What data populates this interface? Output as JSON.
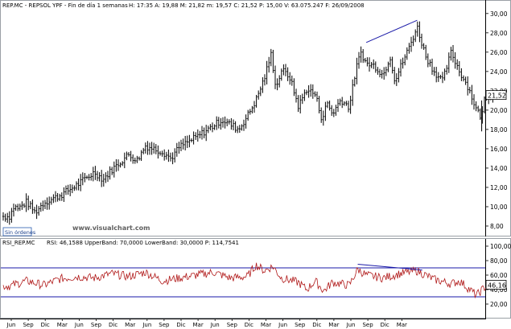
{
  "colors": {
    "price_bars": "#000000",
    "trendline": "#1a1aa8",
    "rsi_line": "#b01818",
    "rsi_band": "#1a1aa8",
    "last_tag_bg": "#ffffff"
  },
  "chart_data": [
    {
      "type": "ohlc",
      "title": "REP.MC - REPSOL YPF - Fin de día 1 semanas",
      "stats": "H: 17:35  A: 19,88  M: 21,82  m: 19,57  C: 21,52  P: 15,00  V: 63.075.247  F: 26/09/2008",
      "watermark": "www.visualchart.com",
      "orders_label": "Sin órdenes",
      "last_value_label": "21,52",
      "last_value": 21.52,
      "ylim": [
        7,
        30.4
      ],
      "y_ticks": [
        8,
        10,
        12,
        14,
        16,
        18,
        20,
        22,
        24,
        26,
        28,
        30
      ],
      "y_tick_labels": [
        "8,00",
        "10,00",
        "12,00",
        "14,00",
        "16,00",
        "18,00",
        "20,00",
        "22,00",
        "24,00",
        "26,00",
        "28,00",
        "30,00"
      ],
      "x_labels": [
        "Jun",
        "Sep",
        "Dic",
        "Mar",
        "Jun",
        "Sep",
        "Dic",
        "Mar",
        "Jun",
        "Sep",
        "Dic",
        "Mar",
        "Jun",
        "Sep",
        "Dic",
        "Mar",
        "Jun",
        "Sep",
        "Dic",
        "Mar",
        "Jun",
        "Sep",
        "Dic",
        "Mar"
      ],
      "grid": false,
      "close_path": [
        {
          "x": 0,
          "close": 9.0
        },
        {
          "x": 0.25,
          "close": 10.0
        },
        {
          "x": 0.5,
          "close": 9.8
        },
        {
          "x": 1,
          "close": 10.5
        },
        {
          "x": 1.5,
          "close": 9.4
        },
        {
          "x": 2,
          "close": 10.4
        },
        {
          "x": 3,
          "close": 11.2
        },
        {
          "x": 4,
          "close": 12.3
        },
        {
          "x": 5,
          "close": 13.6
        },
        {
          "x": 5.5,
          "close": 12.8
        },
        {
          "x": 6,
          "close": 13.8
        },
        {
          "x": 7,
          "close": 15.4
        },
        {
          "x": 7.5,
          "close": 14.8
        },
        {
          "x": 8,
          "close": 16.3
        },
        {
          "x": 9,
          "close": 15.7
        },
        {
          "x": 9.5,
          "close": 15.0
        },
        {
          "x": 10,
          "close": 16.2
        },
        {
          "x": 11,
          "close": 17.2
        },
        {
          "x": 12,
          "close": 18.4
        },
        {
          "x": 12.5,
          "close": 19.0
        },
        {
          "x": 13,
          "close": 18.5
        },
        {
          "x": 13.5,
          "close": 18.0
        },
        {
          "x": 14,
          "close": 19.4
        },
        {
          "x": 14.5,
          "close": 21.0
        },
        {
          "x": 15,
          "close": 23.3
        },
        {
          "x": 15.4,
          "close": 25.8
        },
        {
          "x": 15.7,
          "close": 22.2
        },
        {
          "x": 16,
          "close": 24.2
        },
        {
          "x": 16.5,
          "close": 23.4
        },
        {
          "x": 17,
          "close": 20.4
        },
        {
          "x": 17.5,
          "close": 22.2
        },
        {
          "x": 18,
          "close": 21.6
        },
        {
          "x": 18.4,
          "close": 19.0
        },
        {
          "x": 18.7,
          "close": 20.8
        },
        {
          "x": 19,
          "close": 19.6
        },
        {
          "x": 19.5,
          "close": 21.1
        },
        {
          "x": 20,
          "close": 20.3
        },
        {
          "x": 20.4,
          "close": 24.3
        },
        {
          "x": 20.7,
          "close": 26.0
        },
        {
          "x": 21,
          "close": 24.8
        },
        {
          "x": 21.5,
          "close": 24.6
        },
        {
          "x": 22,
          "close": 23.6
        },
        {
          "x": 22.4,
          "close": 25.6
        },
        {
          "x": 22.7,
          "close": 23.0
        },
        {
          "x": 23,
          "close": 24.4
        },
        {
          "x": 23.5,
          "close": 26.4
        },
        {
          "x": 24,
          "close": 28.6
        },
        {
          "x": 24.5,
          "close": 25.6
        },
        {
          "x": 25,
          "close": 24.0
        },
        {
          "x": 25.5,
          "close": 23.0
        },
        {
          "x": 26,
          "close": 26.0
        },
        {
          "x": 26.5,
          "close": 24.0
        },
        {
          "x": 27,
          "close": 22.4
        },
        {
          "x": 27.5,
          "close": 20.0
        },
        {
          "x": 27.8,
          "close": 19.2
        },
        {
          "x": 28,
          "close": 21.6
        },
        {
          "x": 28.5,
          "close": 21.52
        }
      ],
      "trendline": {
        "points": [
          {
            "x": 21.0,
            "y": 27.0
          },
          {
            "x": 24.0,
            "y": 29.3
          }
        ]
      }
    },
    {
      "type": "line",
      "title": "RSI_REP.MC",
      "legend": "RSI: 46,1588  UpperBand: 70,0000  LowerBand: 30,0000  P: 114,7541",
      "series_name": "RSI",
      "last_value": 46.16,
      "last_value_label": "46,16",
      "upper_band": 70,
      "lower_band": 30,
      "ylim": [
        0,
        110
      ],
      "y_ticks": [
        20,
        40,
        60,
        80,
        100
      ],
      "y_tick_labels": [
        "20,00",
        "40,00",
        "60,00",
        "80,00",
        "100,00"
      ],
      "rsi_path": [
        {
          "x": 0,
          "v": 45
        },
        {
          "x": 1,
          "v": 52
        },
        {
          "x": 2,
          "v": 46
        },
        {
          "x": 3,
          "v": 55
        },
        {
          "x": 4,
          "v": 58
        },
        {
          "x": 5,
          "v": 56
        },
        {
          "x": 6,
          "v": 62
        },
        {
          "x": 7,
          "v": 58
        },
        {
          "x": 8,
          "v": 64
        },
        {
          "x": 9,
          "v": 52
        },
        {
          "x": 10,
          "v": 56
        },
        {
          "x": 11,
          "v": 60
        },
        {
          "x": 12,
          "v": 64
        },
        {
          "x": 13,
          "v": 56
        },
        {
          "x": 14,
          "v": 58
        },
        {
          "x": 14.5,
          "v": 74
        },
        {
          "x": 15,
          "v": 66
        },
        {
          "x": 15.5,
          "v": 72
        },
        {
          "x": 16,
          "v": 56
        },
        {
          "x": 17,
          "v": 50
        },
        {
          "x": 17.5,
          "v": 40
        },
        {
          "x": 18,
          "v": 52
        },
        {
          "x": 18.5,
          "v": 38
        },
        {
          "x": 19,
          "v": 50
        },
        {
          "x": 20,
          "v": 46
        },
        {
          "x": 20.5,
          "v": 68
        },
        {
          "x": 21,
          "v": 60
        },
        {
          "x": 22,
          "v": 56
        },
        {
          "x": 23,
          "v": 62
        },
        {
          "x": 24,
          "v": 66
        },
        {
          "x": 25,
          "v": 54
        },
        {
          "x": 26,
          "v": 48
        },
        {
          "x": 26.5,
          "v": 52
        },
        {
          "x": 27,
          "v": 42
        },
        {
          "x": 27.5,
          "v": 32
        },
        {
          "x": 28,
          "v": 44
        },
        {
          "x": 28.5,
          "v": 46.16
        }
      ],
      "trendline": {
        "points": [
          {
            "x": 20.5,
            "y": 75
          },
          {
            "x": 24.3,
            "y": 67
          }
        ]
      }
    }
  ]
}
